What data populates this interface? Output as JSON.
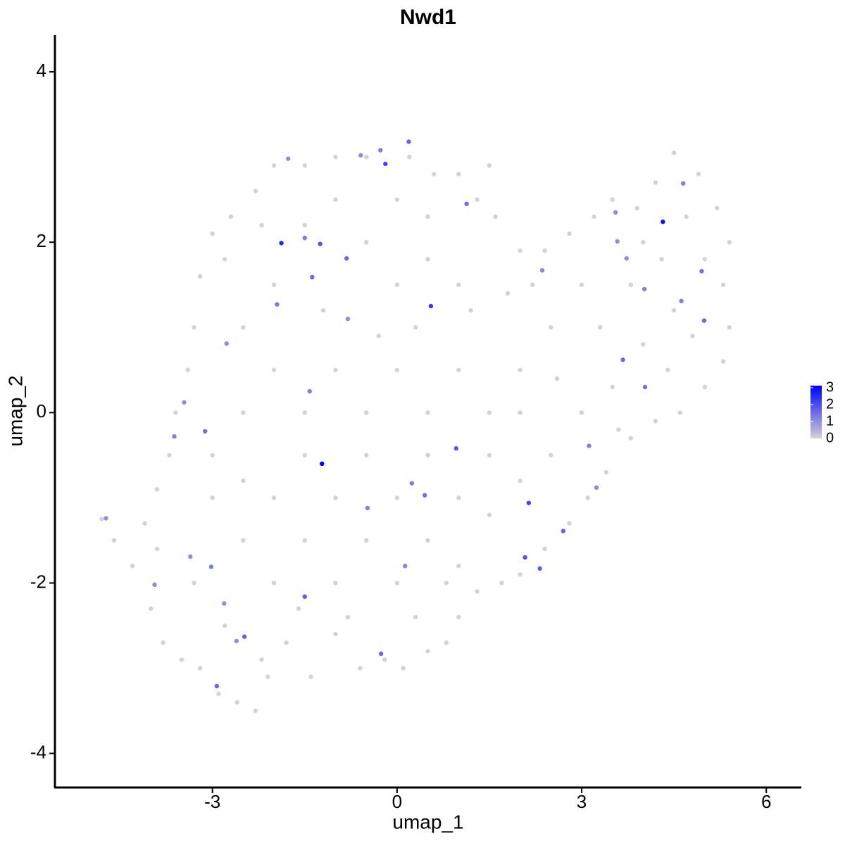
{
  "chart_data": {
    "type": "scatter",
    "title": "Nwd1",
    "x_label": "umap_1",
    "y_label": "umap_2",
    "xlim": [
      -5.56,
      6.57
    ],
    "ylim": [
      -4.4,
      4.43
    ],
    "xticks": [
      -3,
      0,
      3,
      6
    ],
    "yticks": [
      -4,
      -2,
      0,
      2,
      4
    ],
    "color_low": "#d3d3d3",
    "color_high": "#0000ff",
    "colorlim": [
      0,
      3
    ],
    "colorticks": [
      0,
      1,
      2,
      3
    ],
    "x": [
      -4.8,
      -4.6,
      -4.3,
      -4.1,
      -3.9,
      -4.0,
      -3.8,
      -3.5,
      -3.2,
      -2.9,
      -2.6,
      -2.3,
      -2.1,
      -1.8,
      -1.4,
      -1.0,
      -0.6,
      -0.2,
      0.1,
      0.5,
      0.8,
      1.0,
      1.3,
      1.7,
      2.0,
      2.4,
      2.8,
      3.1,
      3.4,
      3.8,
      4.2,
      4.6,
      5.0,
      5.3,
      5.4,
      5.3,
      5.4,
      5.2,
      4.9,
      4.5,
      4.2,
      3.9,
      3.5,
      3.2,
      2.8,
      2.4,
      2.0,
      1.6,
      1.5,
      1.0,
      0.6,
      0.2,
      -0.5,
      -1.0,
      -1.5,
      -2.0,
      -2.3,
      -2.7,
      -3.0,
      -3.2,
      -3.3,
      -3.4,
      -3.6,
      -3.7,
      -3.9,
      -3.0,
      -2.5,
      -2.0,
      -1.5,
      -1.0,
      -0.5,
      0.0,
      0.5,
      1.0,
      1.5,
      2.0,
      2.5,
      3.0,
      3.5,
      4.0,
      4.5,
      5.0,
      4.0,
      3.0,
      2.5,
      2.0,
      1.5,
      1.0,
      0.5,
      0.0,
      -0.5,
      -1.0,
      -1.5,
      -2.0,
      -2.5,
      -3.0,
      -2.5,
      -2.0,
      -1.5,
      -1.0,
      -0.5,
      0.0,
      0.5,
      1.0,
      1.5,
      2.0,
      1.0,
      0.5,
      0.0,
      -0.5,
      -1.0,
      -1.5,
      -2.0,
      -2.5,
      -2.8,
      0.0,
      0.5,
      1.2,
      1.8,
      2.2,
      3.3,
      3.8,
      4.3,
      4.7,
      -3.3,
      -2.8,
      -2.2,
      -1.6,
      -0.8,
      0.3,
      0.8,
      -0.3,
      0.3,
      -1.2,
      -2.2,
      1.3,
      2.6,
      3.6,
      4.4,
      4.8,
      -1.22,
      4.32,
      -1.88,
      0.55,
      -0.19,
      0.19,
      -0.27,
      1.13,
      -1.25,
      -1.5,
      -0.82,
      -1.38,
      -1.95,
      0.96,
      2.14,
      2.08,
      2.32,
      2.7,
      -1.5,
      -2.48,
      -2.93,
      -0.26,
      -3.12,
      -3.62,
      3.67,
      4.03,
      4.99,
      4.62,
      4.95,
      4.02,
      3.12,
      0.45,
      -0.48,
      -1.42,
      -3.02,
      -3.36,
      -2.81,
      -2.61,
      2.36,
      -0.8,
      -0.59,
      -1.77,
      -2.77,
      0.24,
      0.13,
      3.24,
      3.58,
      3.73,
      4.65,
      3.55,
      -3.94,
      -4.73,
      -3.46
    ],
    "y": [
      -1.25,
      -1.5,
      -1.8,
      -1.3,
      -1.6,
      -2.3,
      -2.7,
      -2.9,
      -3.0,
      -3.3,
      -3.4,
      -3.5,
      -3.1,
      -2.7,
      -3.1,
      -2.6,
      -3.0,
      -2.9,
      -3.0,
      -2.8,
      -2.7,
      -2.4,
      -2.1,
      -2.0,
      -1.9,
      -1.6,
      -1.3,
      -1.0,
      -0.7,
      -0.3,
      -0.1,
      0.0,
      0.3,
      0.6,
      1.0,
      1.5,
      2.0,
      2.4,
      2.8,
      3.05,
      2.7,
      2.4,
      2.5,
      2.3,
      2.1,
      1.9,
      1.9,
      2.3,
      2.9,
      2.8,
      2.8,
      3.0,
      3.0,
      3.0,
      2.9,
      2.9,
      2.6,
      2.3,
      2.1,
      1.6,
      1.0,
      0.5,
      0.0,
      -0.5,
      -0.9,
      -1.0,
      -1.5,
      -2.0,
      -1.5,
      -2.0,
      -1.5,
      -2.0,
      -1.5,
      -1.8,
      -1.2,
      -0.8,
      -0.5,
      0.0,
      0.3,
      0.8,
      1.2,
      1.8,
      2.0,
      1.5,
      1.0,
      0.5,
      0.0,
      0.5,
      0.0,
      0.5,
      0.0,
      0.5,
      0.0,
      0.5,
      0.0,
      -0.5,
      -0.8,
      -1.0,
      -0.5,
      -1.0,
      -0.5,
      -1.0,
      -0.5,
      -1.0,
      -0.5,
      0.0,
      1.5,
      1.8,
      1.5,
      2.0,
      2.5,
      2.2,
      1.5,
      1.0,
      1.8,
      2.5,
      2.3,
      1.2,
      1.4,
      1.5,
      1.0,
      1.5,
      1.8,
      2.3,
      -2.0,
      -2.5,
      -2.9,
      -2.3,
      -2.4,
      -2.4,
      -2.0,
      0.9,
      1.0,
      1.2,
      2.2,
      2.5,
      0.4,
      -0.2,
      0.5,
      0.9,
      -0.6,
      2.24,
      1.99,
      1.25,
      2.92,
      3.18,
      3.08,
      2.45,
      1.98,
      2.05,
      1.81,
      1.59,
      1.27,
      -0.42,
      -1.06,
      -1.7,
      -1.83,
      -1.39,
      -2.16,
      -2.63,
      -3.21,
      -2.83,
      -0.22,
      -0.28,
      0.62,
      0.3,
      1.08,
      1.31,
      1.66,
      1.45,
      -0.39,
      -0.97,
      -1.12,
      0.25,
      -1.81,
      -1.69,
      -2.24,
      -2.68,
      1.67,
      1.1,
      3.02,
      2.98,
      0.81,
      -0.83,
      -1.8,
      -0.88,
      2.01,
      1.81,
      2.69,
      2.35,
      -2.02,
      -1.24,
      0.12
    ],
    "expression": [
      0,
      0,
      0,
      0,
      0,
      0,
      0,
      0,
      0,
      0,
      0,
      0,
      0,
      0,
      0,
      0,
      0,
      0,
      0,
      0,
      0,
      0,
      0,
      0,
      0,
      0,
      0,
      0,
      0,
      0,
      0,
      0,
      0,
      0,
      0,
      0,
      0,
      0,
      0,
      0,
      0,
      0,
      0,
      0,
      0,
      0,
      0,
      0,
      0,
      0,
      0,
      0,
      0,
      0,
      0,
      0,
      0,
      0,
      0,
      0,
      0,
      0,
      0,
      0,
      0,
      0,
      0,
      0,
      0,
      0,
      0,
      0,
      0,
      0,
      0,
      0,
      0,
      0,
      0,
      0,
      0,
      0,
      0,
      0,
      0,
      0,
      0,
      0,
      0,
      0,
      0,
      0,
      0,
      0,
      0,
      0,
      0,
      0,
      0,
      0,
      0,
      0,
      0,
      0,
      0,
      0,
      0,
      0,
      0,
      0,
      0,
      0,
      0,
      0,
      0,
      0,
      0,
      0,
      0,
      0,
      0,
      0,
      0,
      0,
      0,
      0,
      0,
      0,
      0,
      0,
      0,
      0,
      0,
      0,
      0,
      0,
      0,
      0,
      0,
      0,
      3,
      2.8,
      2.5,
      2.2,
      2,
      1.5,
      1.2,
      1.5,
      1.8,
      1.2,
      1.5,
      1.5,
      1.3,
      1.8,
      2,
      1.8,
      1.7,
      1.6,
      1.7,
      1.6,
      1.5,
      1.5,
      1.4,
      1.2,
      1.5,
      1.4,
      1.5,
      1.2,
      1.4,
      1.2,
      1.2,
      1.4,
      1.2,
      1.2,
      1.2,
      1,
      1,
      1,
      1.1,
      1,
      1,
      1,
      1,
      1.2,
      1.1,
      1,
      1,
      1,
      1.2,
      1,
      1,
      1,
      1
    ]
  }
}
